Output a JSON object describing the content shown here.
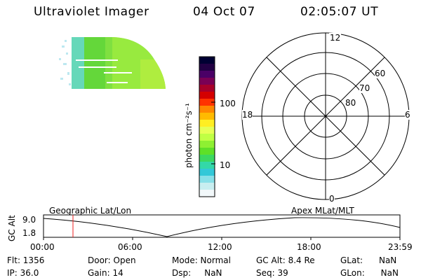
{
  "header": {
    "title": "Ultraviolet Imager",
    "date": "04 Oct 07",
    "time": "02:05:07 UT"
  },
  "colorbar": {
    "unit_label": "photon cm⁻²s⁻¹",
    "ticks": [
      "100",
      "10"
    ],
    "colors": [
      "#000033",
      "#220044",
      "#4a0066",
      "#7a0055",
      "#a8002a",
      "#d40000",
      "#ff3300",
      "#ff8800",
      "#ffbb00",
      "#ffee22",
      "#e6ff55",
      "#c0ff44",
      "#8ef032",
      "#5ee028",
      "#3cd860",
      "#33d8a8",
      "#33c8d8",
      "#88e0e8",
      "#c8eef0",
      "#f2f8fa"
    ]
  },
  "polar_plot": {
    "mlt_labels": [
      "12",
      "18",
      "6",
      "0"
    ],
    "lat_labels": [
      "60",
      "70",
      "80"
    ]
  },
  "timeline": {
    "alt_axis_label": "GC Alt",
    "ytick_top": "9.0",
    "ytick_bottom": "1.8",
    "left_label": "Geographic Lat/Lon",
    "right_label": "Apex MLat/MLT",
    "xticks": [
      "00:00",
      "06:00",
      "12:00",
      "18:00",
      "23:59"
    ],
    "marker_color": "#ee2222"
  },
  "info": {
    "flt": "Flt: 1356",
    "ip": "IP: 36.0",
    "door": "Door: Open",
    "gain": "Gain: 14",
    "mode": "Mode: Normal",
    "dsp": "Dsp:     NaN",
    "gcalt": "GC Alt: 8.4 Re",
    "seq": "Seq: 39",
    "glat": "GLat:      NaN",
    "glon": "GLon:      NaN"
  }
}
